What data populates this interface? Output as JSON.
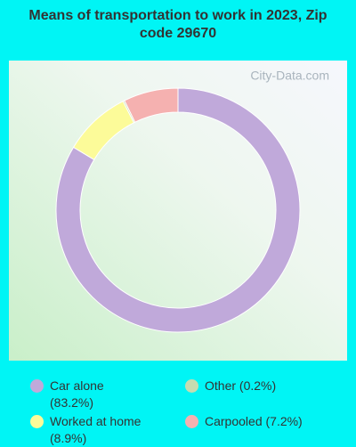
{
  "chart_data": {
    "type": "donut",
    "title": "Means of transportation to work in 2023, Zip code 29670",
    "watermark": "City-Data.com",
    "categories": [
      "Car alone (83.2%)",
      "Worked at home (8.9%)",
      "Other (0.2%)",
      "Carpooled (7.2%)"
    ],
    "values": [
      83.2,
      8.9,
      0.2,
      7.2
    ],
    "colors": [
      "#c0a9da",
      "#fcfb99",
      "#c6dcb0",
      "#f5b1b0"
    ]
  }
}
